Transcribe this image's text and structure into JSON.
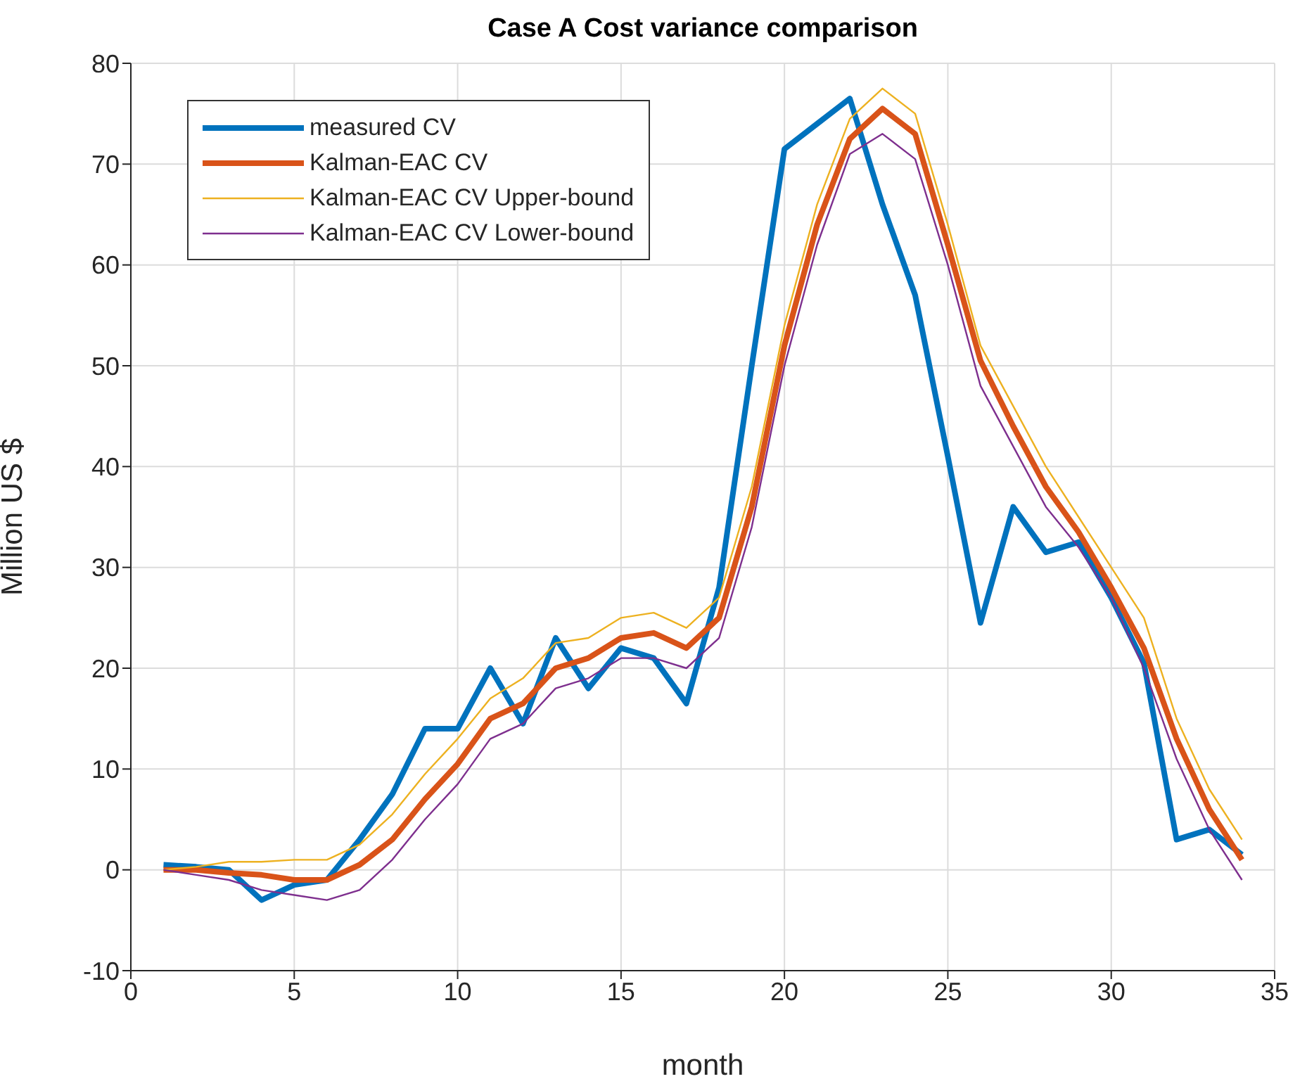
{
  "chart_data": {
    "type": "line",
    "title": "Case A Cost variance comparison",
    "xlabel": "month",
    "ylabel": "Million US $",
    "x": [
      1,
      2,
      3,
      4,
      5,
      6,
      7,
      8,
      9,
      10,
      11,
      12,
      13,
      14,
      15,
      16,
      17,
      18,
      19,
      20,
      21,
      22,
      23,
      24,
      25,
      26,
      27,
      28,
      29,
      30,
      31,
      32,
      33,
      34
    ],
    "series": [
      {
        "name": "measured CV",
        "color": "#0072bd",
        "values": [
          0.5,
          0.3,
          0,
          -3,
          -1.5,
          -1,
          3,
          7.5,
          14,
          14,
          20,
          14.5,
          23,
          18,
          22,
          21,
          16.5,
          28,
          50,
          71.5,
          74,
          76.5,
          66,
          57,
          41,
          24.5,
          36,
          31.5,
          32.5,
          27,
          20.5,
          3,
          4,
          1.5
        ]
      },
      {
        "name": "Kalman-EAC CV",
        "color": "#d95319",
        "values": [
          0,
          0,
          -0.3,
          -0.5,
          -1,
          -1,
          0.5,
          3,
          7,
          10.5,
          15,
          16.5,
          20,
          21,
          23,
          23.5,
          22,
          25,
          36,
          52,
          64,
          72.5,
          75.5,
          73,
          62,
          50.5,
          44,
          38,
          33.5,
          28,
          22,
          13,
          6,
          1
        ]
      },
      {
        "name": "Kalman-EAC CV Upper-bound",
        "color": "#edb120",
        "values": [
          0,
          0.3,
          0.8,
          0.8,
          1,
          1,
          2.5,
          5.5,
          9.5,
          13,
          17,
          19,
          22.5,
          23,
          25,
          25.5,
          24,
          27,
          38,
          54,
          66,
          74.5,
          77.5,
          75,
          64,
          52,
          46,
          40,
          35,
          30,
          25,
          15,
          8,
          3
        ]
      },
      {
        "name": "Kalman-EAC CV Lower-bound",
        "color": "#7e2f8e",
        "values": [
          0,
          -0.5,
          -1,
          -2,
          -2.5,
          -3,
          -2,
          1,
          5,
          8.5,
          13,
          14.5,
          18,
          19,
          21,
          21,
          20,
          23,
          34,
          50,
          62,
          71,
          73,
          70.5,
          60,
          48,
          42,
          36,
          32,
          27,
          20,
          11,
          4,
          -1
        ]
      }
    ],
    "xlim": [
      0,
      35
    ],
    "xticks": [
      0,
      5,
      10,
      15,
      20,
      25,
      30,
      35
    ],
    "ylim": [
      -10,
      80
    ],
    "yticks": [
      -10,
      0,
      10,
      20,
      30,
      40,
      50,
      60,
      70,
      80
    ],
    "grid": true,
    "legend": "top left",
    "marker": "none",
    "line_style": "solid"
  }
}
